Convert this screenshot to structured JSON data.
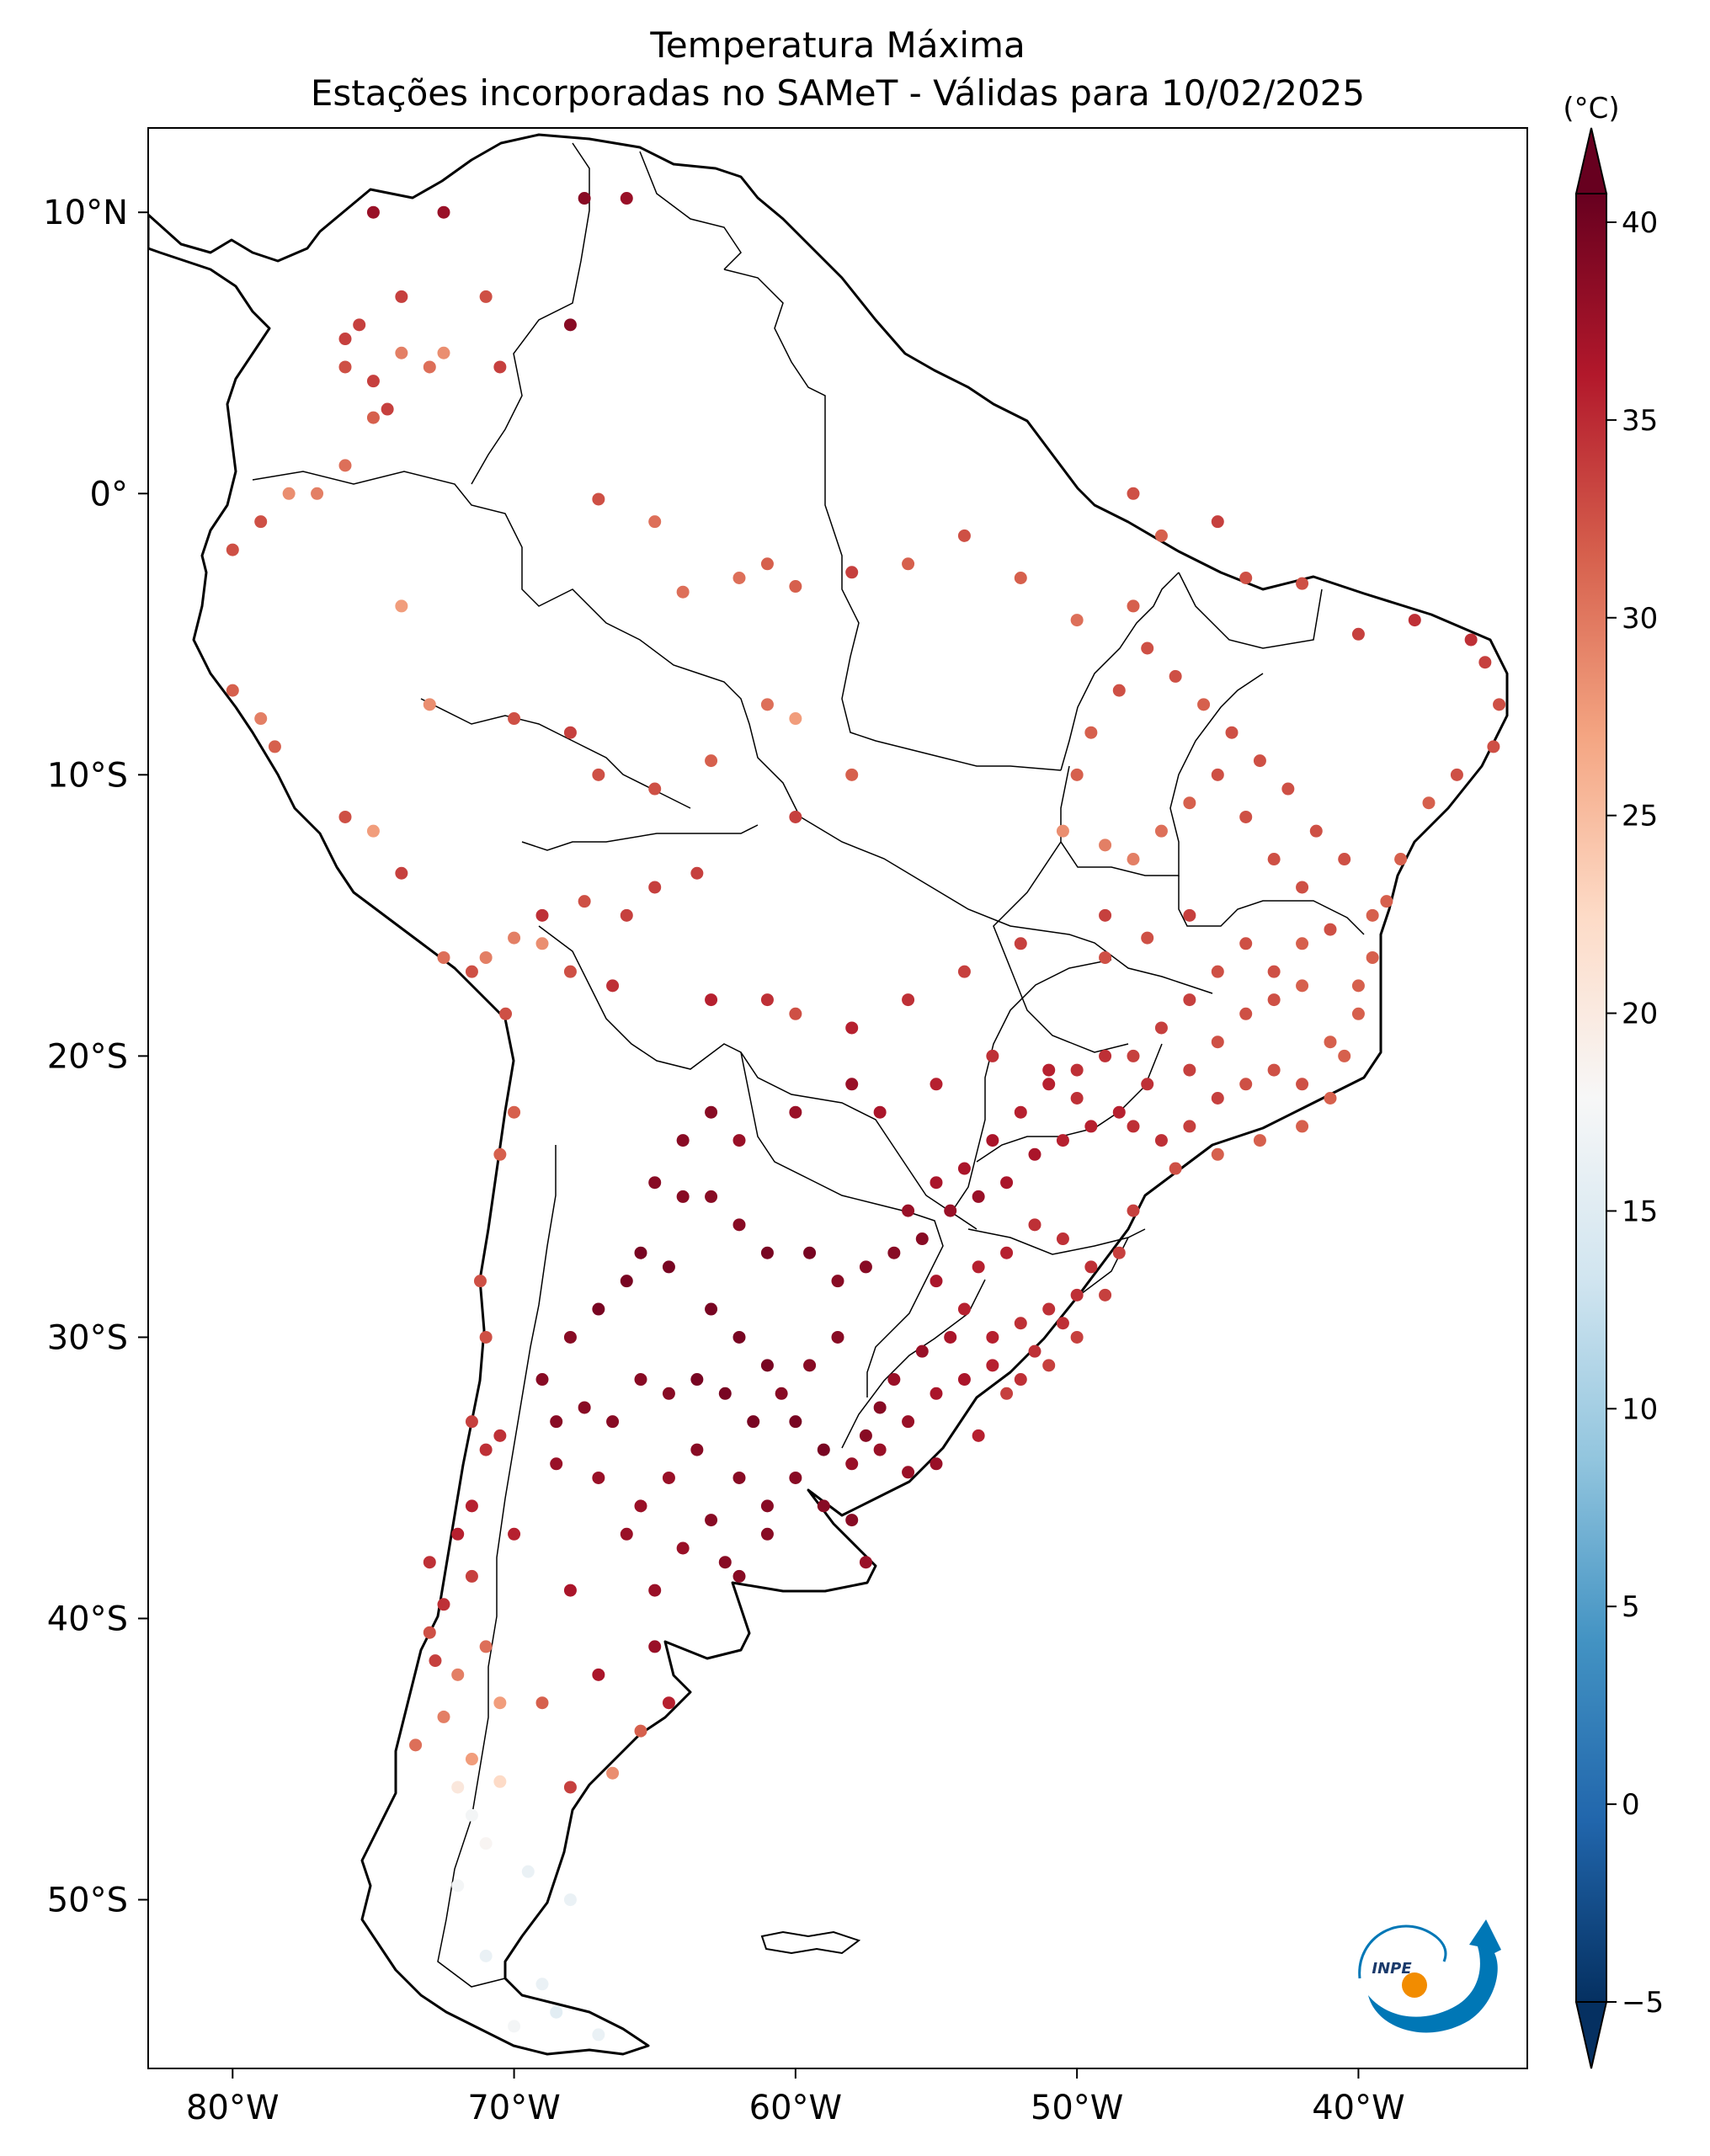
{
  "title": {
    "line1": "Temperatura Máxima",
    "line2": "Estações incorporadas no SAMeT - Válidas para 10/02/2025"
  },
  "map": {
    "lon_range": [
      -83,
      -34
    ],
    "lat_range": [
      -56,
      13
    ],
    "lon_ticks": [
      {
        "value": -80,
        "label": "80°W"
      },
      {
        "value": -70,
        "label": "70°W"
      },
      {
        "value": -60,
        "label": "60°W"
      },
      {
        "value": -50,
        "label": "50°W"
      },
      {
        "value": -40,
        "label": "40°W"
      }
    ],
    "lat_ticks": [
      {
        "value": 10,
        "label": "10°N"
      },
      {
        "value": 0,
        "label": "0°"
      },
      {
        "value": -10,
        "label": "10°S"
      },
      {
        "value": -20,
        "label": "20°S"
      },
      {
        "value": -30,
        "label": "30°S"
      },
      {
        "value": -40,
        "label": "40°S"
      },
      {
        "value": -50,
        "label": "50°S"
      }
    ]
  },
  "colorbar": {
    "unit": "(°C)",
    "min": -5,
    "max": 40,
    "ticks": [
      {
        "value": 40,
        "label": "40"
      },
      {
        "value": 35,
        "label": "35"
      },
      {
        "value": 30,
        "label": "30"
      },
      {
        "value": 25,
        "label": "25"
      },
      {
        "value": 20,
        "label": "20"
      },
      {
        "value": 15,
        "label": "15"
      },
      {
        "value": 10,
        "label": "10"
      },
      {
        "value": 5,
        "label": "5"
      },
      {
        "value": 0,
        "label": "0"
      },
      {
        "value": -5,
        "label": "−5"
      }
    ],
    "colors": [
      "#053061",
      "#2166ac",
      "#4393c3",
      "#92c5de",
      "#d1e5f0",
      "#f7f7f7",
      "#fddbc7",
      "#f4a582",
      "#d6604d",
      "#b2182b",
      "#67001f"
    ]
  },
  "logo": {
    "text": "INPE"
  },
  "stations": [
    [
      -75,
      10,
      37
    ],
    [
      -72.5,
      10,
      37
    ],
    [
      -67.5,
      10.5,
      38
    ],
    [
      -66,
      10.5,
      37
    ],
    [
      -74,
      7,
      33
    ],
    [
      -71,
      7,
      32
    ],
    [
      -68,
      6,
      38
    ],
    [
      -75.5,
      6,
      33
    ],
    [
      -76,
      5.5,
      33
    ],
    [
      -74,
      5,
      29
    ],
    [
      -73,
      4.5,
      30
    ],
    [
      -72.5,
      5,
      28
    ],
    [
      -75,
      4,
      33
    ],
    [
      -76,
      4.5,
      32
    ],
    [
      -74.5,
      3,
      33
    ],
    [
      -75,
      2.7,
      31
    ],
    [
      -70.5,
      4.5,
      33
    ],
    [
      -76,
      1,
      30
    ],
    [
      -78,
      0,
      28
    ],
    [
      -79,
      -1,
      32
    ],
    [
      -80,
      -2,
      32
    ],
    [
      -77,
      0,
      29
    ],
    [
      -67,
      -0.2,
      32
    ],
    [
      -65,
      -1,
      30
    ],
    [
      -61,
      -2.5,
      31
    ],
    [
      -58,
      -2.8,
      33
    ],
    [
      -62,
      -3,
      30
    ],
    [
      -64,
      -3.5,
      30
    ],
    [
      -60,
      -3.3,
      31
    ],
    [
      -56,
      -2.5,
      31
    ],
    [
      -54,
      -1.5,
      32
    ],
    [
      -52,
      -3,
      31
    ],
    [
      -50,
      -4.5,
      30
    ],
    [
      -48,
      -4,
      31
    ],
    [
      -47,
      -1.5,
      31
    ],
    [
      -48,
      0,
      32
    ],
    [
      -45,
      -1,
      33
    ],
    [
      -44,
      -3,
      32
    ],
    [
      -42,
      -3.2,
      32
    ],
    [
      -40,
      -5,
      33
    ],
    [
      -38,
      -4.5,
      34
    ],
    [
      -36,
      -5.2,
      34
    ],
    [
      -35.5,
      -6,
      33
    ],
    [
      -35,
      -7.5,
      32
    ],
    [
      -35.2,
      -9,
      32
    ],
    [
      -36.5,
      -10,
      32
    ],
    [
      -37.5,
      -11,
      31
    ],
    [
      -38.5,
      -13,
      31
    ],
    [
      -39,
      -14.5,
      31
    ],
    [
      -39.5,
      -16.5,
      31
    ],
    [
      -40,
      -18.5,
      31
    ],
    [
      -40.5,
      -20,
      31
    ],
    [
      -41,
      -21.5,
      31
    ],
    [
      -42,
      -22.5,
      31
    ],
    [
      -43.5,
      -23,
      31
    ],
    [
      -45,
      -23.5,
      31
    ],
    [
      -46.5,
      -24,
      32
    ],
    [
      -48,
      -25.5,
      33
    ],
    [
      -48.5,
      -27,
      33
    ],
    [
      -49,
      -28.5,
      33
    ],
    [
      -50,
      -30,
      33
    ],
    [
      -51,
      -31,
      33
    ],
    [
      -52.5,
      -32,
      33
    ],
    [
      -53.5,
      -33.5,
      35
    ],
    [
      -55,
      -34.5,
      37
    ],
    [
      -56,
      -34.8,
      37
    ],
    [
      -57,
      -34,
      37
    ],
    [
      -58,
      -34.5,
      37
    ],
    [
      -59,
      -36,
      38
    ],
    [
      -61,
      -37,
      38
    ],
    [
      -62,
      -38.5,
      38
    ],
    [
      -65,
      -39,
      37
    ],
    [
      -68,
      -39,
      36
    ],
    [
      -70,
      -37,
      35
    ],
    [
      -71,
      -34,
      34
    ],
    [
      -71.5,
      -33,
      33
    ],
    [
      -70.5,
      -33.5,
      34
    ],
    [
      -71,
      -30,
      32
    ],
    [
      -71.2,
      -28,
      32
    ],
    [
      -70.5,
      -23.5,
      31
    ],
    [
      -70,
      -22,
      31
    ],
    [
      -70.3,
      -18.5,
      32
    ],
    [
      -71.5,
      -17,
      32
    ],
    [
      -71,
      -16.5,
      29
    ],
    [
      -70,
      -15.8,
      29
    ],
    [
      -69,
      -16,
      28
    ],
    [
      -72.5,
      -16.5,
      30
    ],
    [
      -74,
      -13.5,
      33
    ],
    [
      -75,
      -12,
      27
    ],
    [
      -76,
      -11.5,
      32
    ],
    [
      -78.5,
      -9,
      31
    ],
    [
      -80,
      -7,
      31
    ],
    [
      -79,
      -8,
      29
    ],
    [
      -74,
      -4,
      27
    ],
    [
      -73,
      -7.5,
      28
    ],
    [
      -70,
      -8,
      32
    ],
    [
      -68,
      -8.5,
      33
    ],
    [
      -67,
      -10,
      32
    ],
    [
      -65,
      -10.5,
      32
    ],
    [
      -63,
      -9.5,
      31
    ],
    [
      -61,
      -7.5,
      30
    ],
    [
      -60,
      -8,
      27
    ],
    [
      -58,
      -10,
      31
    ],
    [
      -60,
      -11.5,
      33
    ],
    [
      -63.5,
      -13.5,
      33
    ],
    [
      -65,
      -14,
      33
    ],
    [
      -66,
      -15,
      33
    ],
    [
      -67.5,
      -14.5,
      32
    ],
    [
      -69,
      -15,
      34
    ],
    [
      -68,
      -17,
      32
    ],
    [
      -66.5,
      -17.5,
      34
    ],
    [
      -63,
      -18,
      35
    ],
    [
      -61,
      -18,
      34
    ],
    [
      -60,
      -18.5,
      32
    ],
    [
      -58,
      -19,
      35
    ],
    [
      -56,
      -18,
      34
    ],
    [
      -54,
      -17,
      33
    ],
    [
      -52,
      -16,
      33
    ],
    [
      -49,
      -16.5,
      32
    ],
    [
      -47.5,
      -15.8,
      32
    ],
    [
      -49,
      -15,
      33
    ],
    [
      -46,
      -15,
      33
    ],
    [
      -44,
      -16,
      32
    ],
    [
      -43,
      -17,
      32
    ],
    [
      -42,
      -17.5,
      31
    ],
    [
      -44,
      -18.5,
      32
    ],
    [
      -45,
      -19.5,
      32
    ],
    [
      -46,
      -20.5,
      33
    ],
    [
      -47.5,
      -21,
      34
    ],
    [
      -48.5,
      -22,
      35
    ],
    [
      -49.5,
      -22.5,
      35
    ],
    [
      -50.5,
      -23,
      35
    ],
    [
      -51.5,
      -23.5,
      36
    ],
    [
      -52.5,
      -24.5,
      36
    ],
    [
      -53.5,
      -25,
      37
    ],
    [
      -54.5,
      -25.5,
      37
    ],
    [
      -55.5,
      -26.5,
      38
    ],
    [
      -56.5,
      -27,
      38
    ],
    [
      -57.5,
      -27.5,
      38
    ],
    [
      -58.5,
      -28,
      38
    ],
    [
      -59.5,
      -27,
      39
    ],
    [
      -61,
      -27,
      39
    ],
    [
      -62,
      -26,
      38
    ],
    [
      -63,
      -25,
      38
    ],
    [
      -64,
      -25,
      38
    ],
    [
      -65,
      -24.5,
      38
    ],
    [
      -64,
      -23,
      38
    ],
    [
      -63,
      -22,
      38
    ],
    [
      -62,
      -23,
      37
    ],
    [
      -60,
      -22,
      37
    ],
    [
      -58,
      -21,
      37
    ],
    [
      -57,
      -22,
      36
    ],
    [
      -55,
      -21,
      35
    ],
    [
      -53,
      -20,
      34
    ],
    [
      -51,
      -20.5,
      35
    ],
    [
      -50,
      -21.5,
      34
    ],
    [
      -48,
      -22.5,
      34
    ],
    [
      -47,
      -23,
      34
    ],
    [
      -46,
      -22.5,
      33
    ],
    [
      -45,
      -21.5,
      33
    ],
    [
      -44,
      -21,
      32
    ],
    [
      -43,
      -20.5,
      32
    ],
    [
      -42,
      -21,
      32
    ],
    [
      -41,
      -19.5,
      31
    ],
    [
      -40,
      -17.5,
      31
    ],
    [
      -39.5,
      -15,
      31
    ],
    [
      -40.5,
      -13,
      32
    ],
    [
      -41.5,
      -12,
      32
    ],
    [
      -42.5,
      -10.5,
      32
    ],
    [
      -43.5,
      -9.5,
      32
    ],
    [
      -44.5,
      -8.5,
      32
    ],
    [
      -45.5,
      -7.5,
      31
    ],
    [
      -46.5,
      -6.5,
      32
    ],
    [
      -47.5,
      -5.5,
      32
    ],
    [
      -48.5,
      -7,
      32
    ],
    [
      -49.5,
      -8.5,
      31
    ],
    [
      -50,
      -10,
      31
    ],
    [
      -50.5,
      -12,
      28
    ],
    [
      -49,
      -12.5,
      29
    ],
    [
      -48,
      -13,
      29
    ],
    [
      -47,
      -12,
      30
    ],
    [
      -46,
      -11,
      31
    ],
    [
      -45,
      -10,
      32
    ],
    [
      -44,
      -11.5,
      32
    ],
    [
      -43,
      -13,
      32
    ],
    [
      -42,
      -14,
      32
    ],
    [
      -41,
      -15.5,
      32
    ],
    [
      -42,
      -16,
      31
    ],
    [
      -43,
      -18,
      32
    ],
    [
      -45,
      -17,
      32
    ],
    [
      -46,
      -18,
      33
    ],
    [
      -47,
      -19,
      33
    ],
    [
      -48,
      -20,
      33
    ],
    [
      -49,
      -20,
      34
    ],
    [
      -50,
      -20.5,
      34
    ],
    [
      -51,
      -21,
      35
    ],
    [
      -52,
      -22,
      35
    ],
    [
      -53,
      -23,
      36
    ],
    [
      -54,
      -24,
      36
    ],
    [
      -55,
      -24.5,
      36
    ],
    [
      -56,
      -25.5,
      37
    ],
    [
      -55,
      -28,
      36
    ],
    [
      -54,
      -29,
      35
    ],
    [
      -53,
      -30,
      35
    ],
    [
      -52,
      -29.5,
      34
    ],
    [
      -51,
      -29,
      34
    ],
    [
      -50,
      -28.5,
      34
    ],
    [
      -49.5,
      -27.5,
      34
    ],
    [
      -50.5,
      -26.5,
      34
    ],
    [
      -51.5,
      -26,
      34
    ],
    [
      -52.5,
      -27,
      35
    ],
    [
      -53.5,
      -27.5,
      35
    ],
    [
      -54.5,
      -30,
      36
    ],
    [
      -55.5,
      -30.5,
      37
    ],
    [
      -56.5,
      -31.5,
      37
    ],
    [
      -57,
      -32.5,
      38
    ],
    [
      -57.5,
      -33.5,
      38
    ],
    [
      -56,
      -33,
      37
    ],
    [
      -55,
      -32,
      36
    ],
    [
      -54,
      -31.5,
      36
    ],
    [
      -53,
      -31,
      35
    ],
    [
      -52,
      -31.5,
      34
    ],
    [
      -51.5,
      -30.5,
      34
    ],
    [
      -50.5,
      -29.5,
      34
    ],
    [
      -58.5,
      -30,
      38
    ],
    [
      -59.5,
      -31,
      38
    ],
    [
      -60.5,
      -32,
      38
    ],
    [
      -61.5,
      -33,
      39
    ],
    [
      -62.5,
      -32,
      39
    ],
    [
      -63.5,
      -31.5,
      39
    ],
    [
      -64.5,
      -32,
      38
    ],
    [
      -65.5,
      -31.5,
      38
    ],
    [
      -66.5,
      -33,
      38
    ],
    [
      -67.5,
      -32.5,
      38
    ],
    [
      -68.5,
      -33,
      38
    ],
    [
      -69,
      -31.5,
      38
    ],
    [
      -68,
      -30,
      38
    ],
    [
      -67,
      -29,
      39
    ],
    [
      -66,
      -28,
      39
    ],
    [
      -65.5,
      -27,
      39
    ],
    [
      -64.5,
      -27.5,
      39
    ],
    [
      -63,
      -29,
      39
    ],
    [
      -62,
      -30,
      39
    ],
    [
      -61,
      -31,
      39
    ],
    [
      -60,
      -33,
      39
    ],
    [
      -59,
      -34,
      39
    ],
    [
      -62,
      -35,
      38
    ],
    [
      -63.5,
      -34,
      38
    ],
    [
      -64.5,
      -35,
      37
    ],
    [
      -65.5,
      -36,
      37
    ],
    [
      -67,
      -35,
      37
    ],
    [
      -68.5,
      -34.5,
      37
    ],
    [
      -66,
      -37,
      37
    ],
    [
      -64,
      -37.5,
      37
    ],
    [
      -63,
      -36.5,
      38
    ],
    [
      -61,
      -36,
      38
    ],
    [
      -60,
      -35,
      38
    ],
    [
      -58,
      -36.5,
      38
    ],
    [
      -57.5,
      -38,
      37
    ],
    [
      -62.5,
      -38,
      38
    ],
    [
      -65,
      -41,
      37
    ],
    [
      -67,
      -42,
      36
    ],
    [
      -71,
      -41,
      30
    ],
    [
      -72,
      -42,
      29
    ],
    [
      -72.5,
      -39.5,
      34
    ],
    [
      -73,
      -38,
      34
    ],
    [
      -72,
      -37,
      35
    ],
    [
      -71.5,
      -36,
      35
    ],
    [
      -73,
      -40.5,
      32
    ],
    [
      -71.5,
      -38.5,
      33
    ],
    [
      -72.5,
      -43.5,
      29
    ],
    [
      -71.5,
      -45,
      27
    ],
    [
      -70.5,
      -45.8,
      22
    ],
    [
      -72,
      -46,
      20
    ],
    [
      -71,
      -48,
      18
    ],
    [
      -69.5,
      -49,
      16
    ],
    [
      -68,
      -50,
      16
    ],
    [
      -72,
      -49.5,
      17
    ],
    [
      -71,
      -52,
      16
    ],
    [
      -69,
      -53,
      16
    ],
    [
      -68.5,
      -54,
      15
    ],
    [
      -70,
      -54.5,
      17
    ],
    [
      -67,
      -54.8,
      16
    ],
    [
      -68,
      -46,
      33
    ],
    [
      -69,
      -43,
      31
    ],
    [
      -66.5,
      -45.5,
      28
    ],
    [
      -64.5,
      -43,
      35
    ],
    [
      -65.5,
      -44,
      31
    ],
    [
      -71.5,
      -47,
      17
    ],
    [
      -70.5,
      -43,
      27
    ],
    [
      -73.5,
      -44.5,
      30
    ],
    [
      -72.8,
      -41.5,
      33
    ]
  ]
}
